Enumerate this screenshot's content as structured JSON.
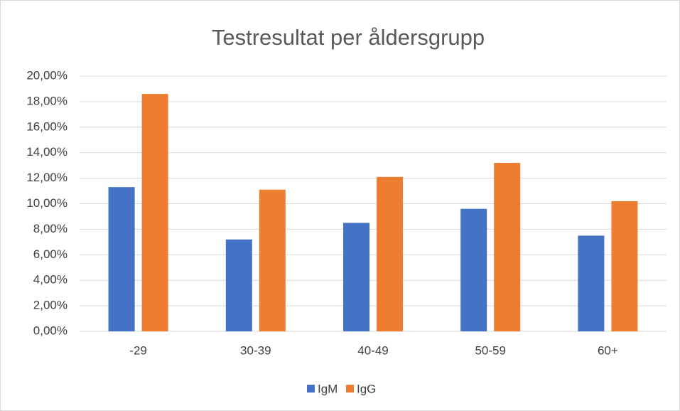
{
  "chart_data": {
    "type": "bar",
    "title": "Testresultat per åldersgrupp",
    "categories": [
      "-29",
      "30-39",
      "40-49",
      "50-59",
      "60+"
    ],
    "series": [
      {
        "name": "IgM",
        "color": "#4472c4",
        "values": [
          11.3,
          7.2,
          8.5,
          9.6,
          7.5
        ]
      },
      {
        "name": "IgG",
        "color": "#ed7d31",
        "values": [
          18.6,
          11.1,
          12.1,
          13.2,
          10.2
        ]
      }
    ],
    "ylim": [
      0,
      20
    ],
    "yticks": [
      {
        "value": 0,
        "label": "0,00%"
      },
      {
        "value": 2,
        "label": "2,00%"
      },
      {
        "value": 4,
        "label": "4,00%"
      },
      {
        "value": 6,
        "label": "6,00%"
      },
      {
        "value": 8,
        "label": "8,00%"
      },
      {
        "value": 10,
        "label": "10,00%"
      },
      {
        "value": 12,
        "label": "12,00%"
      },
      {
        "value": 14,
        "label": "14,00%"
      },
      {
        "value": 16,
        "label": "16,00%"
      },
      {
        "value": 18,
        "label": "18,00%"
      },
      {
        "value": 20,
        "label": "20,00%"
      }
    ],
    "grid": true,
    "legend": "bottom"
  }
}
